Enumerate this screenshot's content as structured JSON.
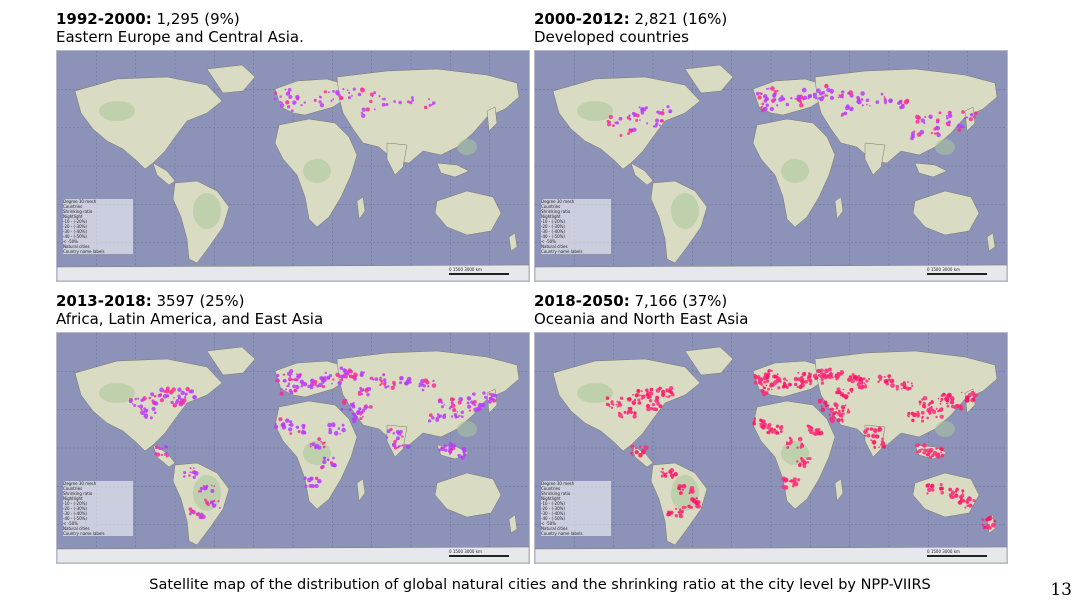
{
  "panels": [
    {
      "period": "1992-2000:",
      "stat": "1,295 (9%)",
      "region": "Eastern Europe and Central Asia.",
      "density": 0.35,
      "dot_color": "#c13cff",
      "hot_color": "#ff2a90"
    },
    {
      "period": "2000-2012:",
      "stat": "2,821 (16%)",
      "region": "Developed countries",
      "density": 0.55,
      "dot_color": "#b73cff",
      "hot_color": "#ff2a90"
    },
    {
      "period": "2013-2018:",
      "stat": "3597 (25%)",
      "region": "Africa, Latin America, and East Asia",
      "density": 0.8,
      "dot_color": "#b83bff",
      "hot_color": "#ff2a90"
    },
    {
      "period": "2018-2050:",
      "stat": "7,166 (37%)",
      "region": "Oceania and North East Asia",
      "density": 1.0,
      "dot_color": "#ff2a7a",
      "hot_color": "#ff1060"
    }
  ],
  "legend": {
    "items": [
      "Degree 30 mesh",
      "Countries",
      "Shrinking ratio",
      "Nightlight",
      "-10 - (-20%)",
      "-20 - (-30%)",
      "-30 - (-40%)",
      "-40 - (-50%)",
      "< -50%",
      "Natural cities",
      "Country name labels"
    ]
  },
  "scale": {
    "labels": [
      "0",
      "1500",
      "3000 km"
    ]
  },
  "caption": "Satellite map of the distribution of global natural cities and the shrinking ratio at the city level by NPP-VIIRS",
  "page_number": "13"
}
